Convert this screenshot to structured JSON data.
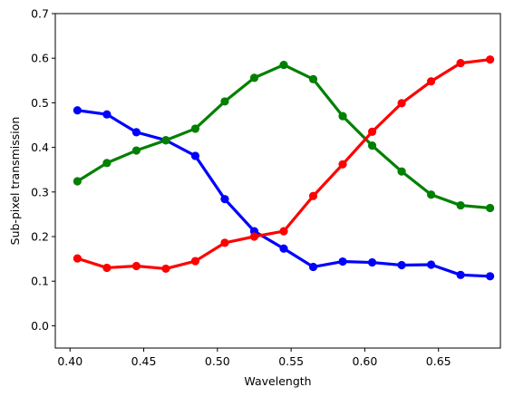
{
  "chart_data": {
    "type": "line",
    "title": "",
    "xlabel": "Wavelength",
    "ylabel": "Sub-pixel transmission",
    "xlim": [
      0.39,
      0.692
    ],
    "ylim": [
      -0.05,
      0.7
    ],
    "grid": false,
    "legend": "none",
    "x_ticks": [
      0.4,
      0.45,
      0.5,
      0.55,
      0.6,
      0.65
    ],
    "x_tick_labels": [
      "0.40",
      "0.45",
      "0.50",
      "0.55",
      "0.60",
      "0.65"
    ],
    "y_ticks": [
      0.0,
      0.1,
      0.2,
      0.3,
      0.4,
      0.5,
      0.6,
      0.7
    ],
    "y_tick_labels": [
      "0.0",
      "0.1",
      "0.2",
      "0.3",
      "0.4",
      "0.5",
      "0.6",
      "0.7"
    ],
    "x": [
      0.405,
      0.425,
      0.445,
      0.465,
      0.485,
      0.505,
      0.525,
      0.545,
      0.565,
      0.585,
      0.605,
      0.625,
      0.645,
      0.665,
      0.685
    ],
    "series": [
      {
        "color": "#0000ff",
        "values": [
          0.483,
          0.474,
          0.434,
          0.416,
          0.381,
          0.284,
          0.212,
          0.173,
          0.132,
          0.144,
          0.142,
          0.136,
          0.137,
          0.114,
          0.111
        ]
      },
      {
        "color": "#008000",
        "values": [
          0.324,
          0.365,
          0.393,
          0.416,
          0.442,
          0.503,
          0.556,
          0.585,
          0.553,
          0.47,
          0.404,
          0.346,
          0.294,
          0.27,
          0.264
        ]
      },
      {
        "color": "#ff0000",
        "values": [
          0.151,
          0.13,
          0.134,
          0.128,
          0.145,
          0.186,
          0.2,
          0.212,
          0.291,
          0.362,
          0.435,
          0.499,
          0.548,
          0.589,
          0.597
        ]
      }
    ]
  }
}
